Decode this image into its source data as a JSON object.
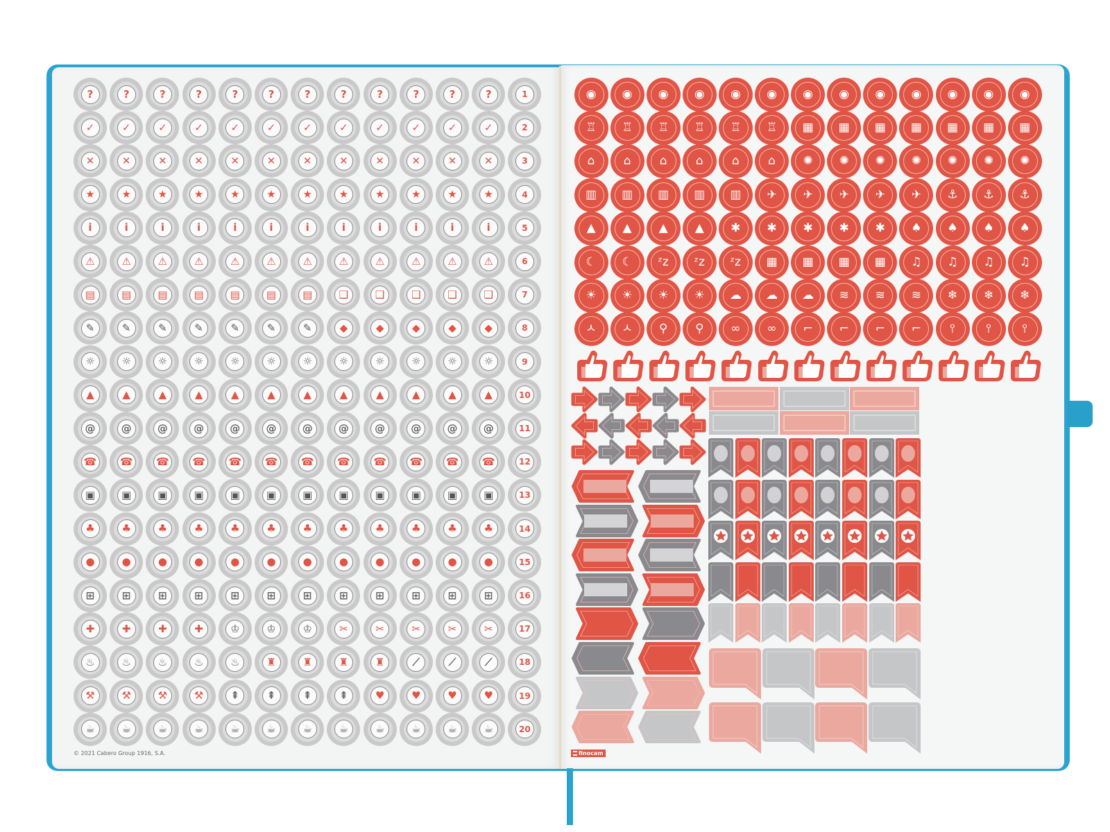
{
  "colors": {
    "cover_blue": "#2aa3d0",
    "red": "#e05545",
    "pink": "#eba89e",
    "dark_gray": "#8a8a8e",
    "light_gray": "#c5c6c8",
    "sticker_gray": "#c9c9ca",
    "page": "#f4f5f5"
  },
  "left_page": {
    "rows": [
      {
        "number": "1",
        "icons": [
          {
            "name": "question-icon",
            "count": 12
          }
        ]
      },
      {
        "number": "2",
        "icons": [
          {
            "name": "check-icon",
            "count": 12
          }
        ]
      },
      {
        "number": "3",
        "icons": [
          {
            "name": "x-icon",
            "count": 12
          }
        ]
      },
      {
        "number": "4",
        "icons": [
          {
            "name": "star-icon",
            "count": 12
          }
        ]
      },
      {
        "number": "5",
        "icons": [
          {
            "name": "info-icon",
            "count": 12
          }
        ]
      },
      {
        "number": "6",
        "icons": [
          {
            "name": "warning-icon",
            "count": 12
          }
        ]
      },
      {
        "number": "7",
        "icons": [
          {
            "name": "notebook-icon",
            "count": 7
          },
          {
            "name": "open-book-icon",
            "count": 5
          }
        ]
      },
      {
        "number": "8",
        "icons": [
          {
            "name": "notepad-pencil-icon",
            "count": 7
          },
          {
            "name": "graduation-cap-icon",
            "count": 5
          }
        ]
      },
      {
        "number": "9",
        "icons": [
          {
            "name": "lightbulb-icon",
            "count": 12
          }
        ]
      },
      {
        "number": "10",
        "icons": [
          {
            "name": "bell-icon",
            "count": 12
          }
        ]
      },
      {
        "number": "11",
        "icons": [
          {
            "name": "at-sign-icon",
            "count": 12
          }
        ]
      },
      {
        "number": "12",
        "icons": [
          {
            "name": "phone-icon",
            "count": 12
          }
        ]
      },
      {
        "number": "13",
        "icons": [
          {
            "name": "computer-icon",
            "count": 12
          }
        ]
      },
      {
        "number": "14",
        "icons": [
          {
            "name": "people-group-icon",
            "count": 12
          }
        ]
      },
      {
        "number": "15",
        "icons": [
          {
            "name": "location-pin-icon",
            "count": 12
          }
        ]
      },
      {
        "number": "16",
        "icons": [
          {
            "name": "shopping-cart-icon",
            "count": 12
          }
        ]
      },
      {
        "number": "17",
        "icons": [
          {
            "name": "medical-cross-icon",
            "count": 4
          },
          {
            "name": "tooth-icon",
            "count": 3
          },
          {
            "name": "scissors-comb-icon",
            "count": 5
          }
        ]
      },
      {
        "number": "18",
        "icons": [
          {
            "name": "cooking-pot-icon",
            "count": 5
          },
          {
            "name": "cleaning-spray-icon",
            "count": 4
          },
          {
            "name": "squeegee-icon",
            "count": 3
          }
        ]
      },
      {
        "number": "19",
        "icons": [
          {
            "name": "tools-icon",
            "count": 4
          },
          {
            "name": "broom-icon",
            "count": 4
          },
          {
            "name": "t-shirt-icon",
            "count": 4
          }
        ]
      },
      {
        "number": "20",
        "icons": [
          {
            "name": "coffee-cup-icon",
            "count": 12
          }
        ]
      }
    ],
    "copyright": "© 2021 Cabero Group 1916, S.A."
  },
  "right_page": {
    "circle_rows": [
      [
        {
          "name": "plate-cutlery-icon",
          "count": 13
        }
      ],
      [
        {
          "name": "birthday-cake-icon",
          "count": 6
        },
        {
          "name": "gifts-icon",
          "count": 7
        }
      ],
      [
        {
          "name": "tickets-icon",
          "count": 6
        },
        {
          "name": "party-popper-icon",
          "count": 7
        }
      ],
      [
        {
          "name": "luggage-icon",
          "count": 5
        },
        {
          "name": "airplane-icon",
          "count": 5
        },
        {
          "name": "ship-icon",
          "count": 3
        }
      ],
      [
        {
          "name": "mountains-icon",
          "count": 4
        },
        {
          "name": "beach-palm-icon",
          "count": 5
        },
        {
          "name": "forest-icon",
          "count": 4
        }
      ],
      [
        {
          "name": "moon-icon",
          "count": 2
        },
        {
          "name": "sleep-zzz-icon",
          "count": 3
        },
        {
          "name": "building-icon",
          "count": 4
        },
        {
          "name": "music-notes-icon",
          "count": 4
        }
      ],
      [
        {
          "name": "sun-icon",
          "count": 4
        },
        {
          "name": "rain-cloud-icon",
          "count": 3
        },
        {
          "name": "wind-icon",
          "count": 3
        },
        {
          "name": "snowflake-icon",
          "count": 3
        }
      ],
      [
        {
          "name": "yoga-icon",
          "count": 2
        },
        {
          "name": "running-icon",
          "count": 2
        },
        {
          "name": "eyes-icon",
          "count": 2
        },
        {
          "name": "sneaker-icon",
          "count": 4
        },
        {
          "name": "thermometer-icon",
          "count": 3
        }
      ]
    ],
    "thumbs_up_count": 13,
    "arrow_rows": [
      [
        {
          "dir": "right",
          "color": "red"
        },
        {
          "dir": "right",
          "color": "dark_gray"
        },
        {
          "dir": "right",
          "color": "red"
        },
        {
          "dir": "right",
          "color": "dark_gray"
        },
        {
          "dir": "right",
          "color": "red"
        }
      ],
      [
        {
          "dir": "left",
          "color": "red"
        },
        {
          "dir": "left",
          "color": "dark_gray"
        },
        {
          "dir": "left",
          "color": "red"
        },
        {
          "dir": "left",
          "color": "dark_gray"
        },
        {
          "dir": "left",
          "color": "red"
        }
      ],
      [
        {
          "dir": "right",
          "color": "red"
        },
        {
          "dir": "right",
          "color": "dark_gray"
        },
        {
          "dir": "right",
          "color": "red"
        },
        {
          "dir": "right",
          "color": "dark_gray"
        },
        {
          "dir": "right",
          "color": "red"
        }
      ]
    ],
    "label_rows": [
      [
        "pink",
        "light_gray",
        "pink"
      ],
      [
        "light_gray",
        "pink",
        "light_gray"
      ]
    ],
    "tag_rows": [
      [
        {
          "dir": "left",
          "color": "red",
          "window": true
        },
        {
          "dir": "left",
          "color": "dark_gray",
          "window": true
        }
      ],
      [
        {
          "dir": "right",
          "color": "dark_gray",
          "window": true
        },
        {
          "dir": "right",
          "color": "red",
          "window": true
        }
      ],
      [
        {
          "dir": "left",
          "color": "red",
          "window": true
        },
        {
          "dir": "left",
          "color": "dark_gray",
          "window": true
        }
      ],
      [
        {
          "dir": "right",
          "color": "dark_gray",
          "window": true
        },
        {
          "dir": "right",
          "color": "red",
          "window": true
        }
      ],
      [
        {
          "dir": "right",
          "color": "red",
          "window": false
        },
        {
          "dir": "right",
          "color": "dark_gray",
          "window": false
        }
      ],
      [
        {
          "dir": "left",
          "color": "dark_gray",
          "window": false
        },
        {
          "dir": "left",
          "color": "red",
          "window": false
        }
      ],
      [
        {
          "dir": "right",
          "color": "light_gray",
          "window": false
        },
        {
          "dir": "right",
          "color": "pink",
          "window": false
        }
      ],
      [
        {
          "dir": "left",
          "color": "pink",
          "window": false
        },
        {
          "dir": "left",
          "color": "light_gray",
          "window": false
        }
      ]
    ],
    "banner_rows": [
      {
        "colors": [
          "dark_gray",
          "red",
          "dark_gray",
          "red",
          "dark_gray",
          "red",
          "dark_gray",
          "red"
        ],
        "emblem": "circle"
      },
      {
        "colors": [
          "dark_gray",
          "red",
          "dark_gray",
          "red",
          "dark_gray",
          "red",
          "dark_gray",
          "red"
        ],
        "emblem": "circle"
      },
      {
        "colors": [
          "dark_gray",
          "red",
          "dark_gray",
          "red",
          "dark_gray",
          "red",
          "dark_gray",
          "red"
        ],
        "emblem": "star"
      },
      {
        "colors": [
          "dark_gray",
          "red",
          "dark_gray",
          "red",
          "dark_gray",
          "red",
          "dark_gray",
          "red"
        ],
        "emblem": "none"
      },
      {
        "colors": [
          "light_gray",
          "pink",
          "light_gray",
          "pink",
          "light_gray",
          "pink",
          "light_gray",
          "pink"
        ],
        "emblem": "none"
      }
    ],
    "bubble_rows": [
      [
        "pink",
        "light_gray",
        "pink",
        "light_gray"
      ],
      [
        "pink",
        "light_gray",
        "pink",
        "light_gray"
      ]
    ],
    "logo": "finocam"
  }
}
